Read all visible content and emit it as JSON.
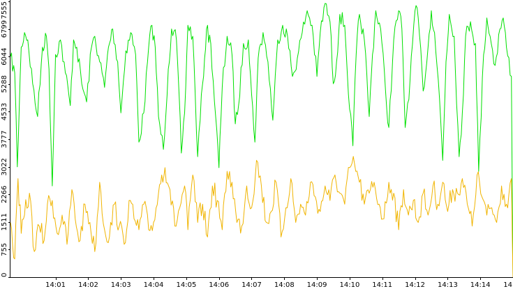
{
  "chart_data": {
    "type": "line",
    "title": "",
    "xlabel": "",
    "ylabel": "",
    "ylim": [
      0,
      7555
    ],
    "grid": false,
    "legend": "none",
    "y_ticks": [
      0,
      755,
      1511,
      2266,
      3022,
      3777,
      4533,
      5288,
      6044,
      6799,
      7555
    ],
    "y_tick_labels": [
      "0",
      "755",
      "1511",
      "2266",
      "3022",
      "3777",
      "4533",
      "5288",
      "6044",
      "6799",
      "7555"
    ],
    "x_start_minutes": 839.62,
    "x_end_minutes": 855.0,
    "x_ticks": [
      {
        "label": "14:01",
        "minute": 841
      },
      {
        "label": "14:02",
        "minute": 842
      },
      {
        "label": "14:03",
        "minute": 843
      },
      {
        "label": "14:04",
        "minute": 844
      },
      {
        "label": "14:05",
        "minute": 845
      },
      {
        "label": "14:06",
        "minute": 846
      },
      {
        "label": "14:07",
        "minute": 847
      },
      {
        "label": "14:08",
        "minute": 848
      },
      {
        "label": "14:09",
        "minute": 849
      },
      {
        "label": "14:10",
        "minute": 850
      },
      {
        "label": "14:11",
        "minute": 851
      },
      {
        "label": "14:12",
        "minute": 852
      },
      {
        "label": "14:13",
        "minute": 853
      },
      {
        "label": "14:14",
        "minute": 854
      },
      {
        "label": "14",
        "minute": 855
      }
    ],
    "series": [
      {
        "color": "#00e000",
        "x": [
          839.62,
          839.75,
          839.83,
          839.95,
          840.05,
          840.15,
          840.3,
          840.45,
          840.6,
          840.72,
          840.8,
          840.9,
          841.0,
          841.15,
          841.3,
          841.45,
          841.55,
          841.65,
          841.8,
          841.95,
          842.1,
          842.2,
          842.35,
          842.5,
          842.62,
          842.75,
          842.9,
          843.0,
          843.15,
          843.3,
          843.45,
          843.55,
          843.7,
          843.85,
          843.95,
          844.05,
          844.15,
          844.3,
          844.45,
          844.55,
          844.7,
          844.85,
          844.95,
          845.05,
          845.2,
          845.35,
          845.5,
          845.62,
          845.75,
          845.9,
          846.0,
          846.1,
          846.25,
          846.4,
          846.5,
          846.6,
          846.75,
          846.9,
          847.0,
          847.1,
          847.2,
          847.35,
          847.5,
          847.65,
          847.8,
          847.95,
          848.1,
          848.25,
          848.4,
          848.55,
          848.7,
          848.85,
          849.0,
          849.1,
          849.25,
          849.4,
          849.5,
          849.6,
          849.7,
          849.85,
          850.0,
          850.1,
          850.2,
          850.3,
          850.45,
          850.6,
          850.7,
          850.8,
          850.95,
          851.1,
          851.2,
          851.35,
          851.5,
          851.6,
          851.7,
          851.85,
          852.0,
          852.1,
          852.25,
          852.4,
          852.5,
          852.6,
          852.75,
          852.85,
          852.95,
          853.05,
          853.2,
          853.35,
          853.45,
          853.55,
          853.7,
          853.85,
          853.95,
          854.1,
          854.2,
          854.3,
          854.45,
          854.6,
          854.7,
          854.8,
          854.95,
          855.0
        ],
        "values": [
          6044,
          5600,
          3022,
          6300,
          6700,
          6500,
          5300,
          4400,
          6300,
          6600,
          5700,
          2500,
          6100,
          6500,
          5600,
          4700,
          6500,
          6300,
          5300,
          4800,
          6300,
          6600,
          5900,
          5200,
          6300,
          6800,
          5900,
          4500,
          6200,
          6700,
          6100,
          3700,
          4500,
          6300,
          6900,
          6300,
          4400,
          3500,
          5700,
          6800,
          6500,
          3400,
          4500,
          6900,
          6600,
          3300,
          5300,
          6800,
          6400,
          4400,
          3000,
          5200,
          6600,
          6100,
          4200,
          4700,
          6400,
          6500,
          5000,
          3700,
          6000,
          6700,
          5900,
          4300,
          6500,
          6900,
          6600,
          5500,
          6000,
          6700,
          7300,
          6900,
          5500,
          6700,
          7500,
          7000,
          5300,
          5900,
          7200,
          6900,
          4600,
          3600,
          6100,
          7200,
          6500,
          4400,
          6100,
          7300,
          6800,
          5100,
          4100,
          6500,
          7300,
          6800,
          4100,
          5400,
          7300,
          7100,
          5100,
          6300,
          7300,
          6700,
          4900,
          3200,
          5900,
          7200,
          6600,
          3300,
          4500,
          6600,
          7000,
          6400,
          2900,
          6100,
          7100,
          6600,
          5800,
          6800,
          7100,
          6300,
          5500,
          0
        ]
      },
      {
        "color": "#f0b400",
        "x": [
          839.62,
          839.75,
          839.85,
          839.95,
          840.05,
          840.2,
          840.35,
          840.5,
          840.65,
          840.75,
          840.9,
          841.05,
          841.2,
          841.35,
          841.5,
          841.6,
          841.75,
          841.9,
          842.05,
          842.2,
          842.35,
          842.5,
          842.65,
          842.8,
          842.95,
          843.1,
          843.25,
          843.4,
          843.55,
          843.7,
          843.85,
          844.0,
          844.15,
          844.25,
          844.35,
          844.5,
          844.65,
          844.8,
          844.95,
          845.05,
          845.2,
          845.35,
          845.5,
          845.65,
          845.8,
          845.95,
          846.1,
          846.25,
          846.4,
          846.55,
          846.7,
          846.85,
          847.0,
          847.15,
          847.3,
          847.45,
          847.6,
          847.75,
          847.9,
          848.05,
          848.2,
          848.35,
          848.5,
          848.65,
          848.8,
          848.95,
          849.1,
          849.25,
          849.4,
          849.55,
          849.7,
          849.85,
          850.0,
          850.15,
          850.3,
          850.45,
          850.6,
          850.75,
          850.9,
          851.05,
          851.2,
          851.35,
          851.5,
          851.65,
          851.8,
          851.95,
          852.1,
          852.25,
          852.4,
          852.55,
          852.7,
          852.85,
          853.0,
          853.15,
          853.3,
          853.45,
          853.6,
          853.75,
          853.9,
          854.05,
          854.2,
          854.35,
          854.5,
          854.65,
          854.8,
          854.95,
          855.0
        ],
        "values": [
          1500,
          500,
          2700,
          1200,
          1700,
          2300,
          700,
          1400,
          1000,
          2000,
          2100,
          1200,
          1700,
          900,
          2400,
          1600,
          1000,
          2000,
          1500,
          700,
          2600,
          1300,
          1100,
          2000,
          1400,
          900,
          2100,
          1600,
          1300,
          2000,
          1300,
          1500,
          2300,
          2800,
          3000,
          2400,
          1400,
          1900,
          2500,
          1300,
          2800,
          1500,
          2000,
          1100,
          2500,
          2100,
          1300,
          2900,
          2600,
          1500,
          1400,
          2500,
          1900,
          3200,
          2500,
          1500,
          1800,
          2600,
          1100,
          1900,
          2700,
          1500,
          2000,
          1700,
          2600,
          2200,
          1800,
          2500,
          2100,
          2800,
          2300,
          2000,
          3000,
          3100,
          2600,
          2000,
          2300,
          2600,
          2000,
          1600,
          2600,
          2300,
          1300,
          2400,
          1700,
          2100,
          1500,
          2300,
          1700,
          2500,
          2000,
          2600,
          1800,
          2400,
          2300,
          2700,
          2000,
          1400,
          2800,
          2200,
          1700,
          1900,
          1500,
          2500,
          2000,
          2700,
          0
        ]
      }
    ]
  }
}
